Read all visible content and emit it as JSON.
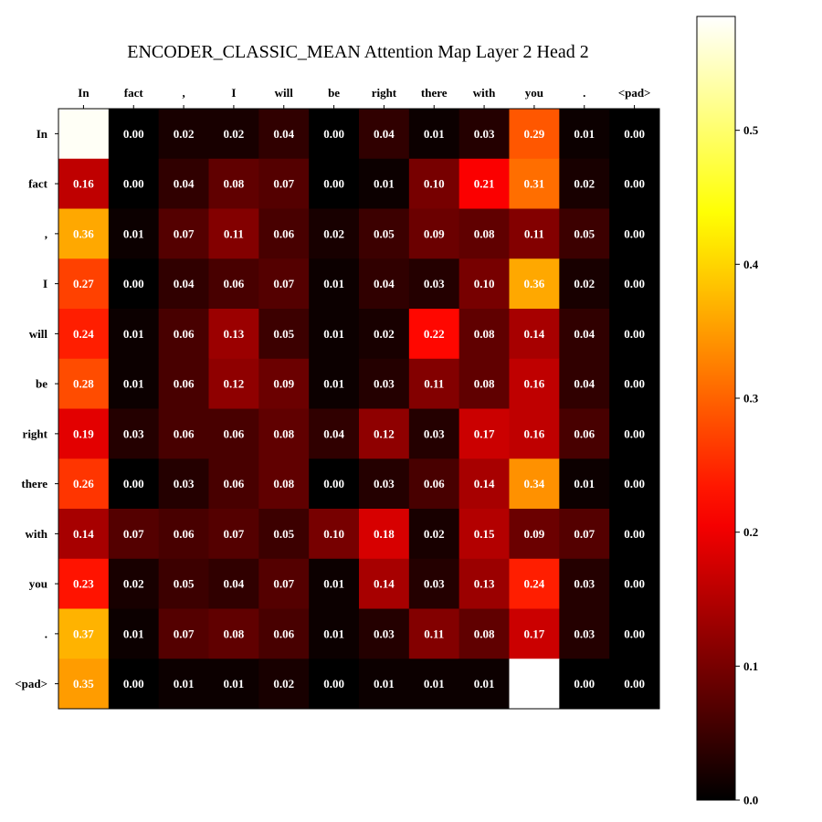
{
  "chart_data": {
    "type": "heatmap",
    "title": "ENCODER_CLASSIC_MEAN Attention Map Layer 2 Head 2",
    "colormap": "hot",
    "vmin": 0.0,
    "vmax": 0.585,
    "x_tokens": [
      "In",
      "fact",
      ",",
      "I",
      "will",
      "be",
      "right",
      "there",
      "with",
      "you",
      ".",
      "<pad>"
    ],
    "y_tokens": [
      "In",
      "fact",
      ",",
      "I",
      "will",
      "be",
      "right",
      "there",
      "with",
      "you",
      ".",
      "<pad>"
    ],
    "values": [
      [
        0.58,
        0.0,
        0.02,
        0.02,
        0.04,
        0.0,
        0.04,
        0.01,
        0.03,
        0.29,
        0.01,
        0.0
      ],
      [
        0.16,
        0.0,
        0.04,
        0.08,
        0.07,
        0.0,
        0.01,
        0.1,
        0.21,
        0.31,
        0.02,
        0.0
      ],
      [
        0.36,
        0.01,
        0.07,
        0.11,
        0.06,
        0.02,
        0.05,
        0.09,
        0.08,
        0.11,
        0.05,
        0.0
      ],
      [
        0.27,
        0.0,
        0.04,
        0.06,
        0.07,
        0.01,
        0.04,
        0.03,
        0.1,
        0.36,
        0.02,
        0.0
      ],
      [
        0.24,
        0.01,
        0.06,
        0.13,
        0.05,
        0.01,
        0.02,
        0.22,
        0.08,
        0.14,
        0.04,
        0.0
      ],
      [
        0.28,
        0.01,
        0.06,
        0.12,
        0.09,
        0.01,
        0.03,
        0.11,
        0.08,
        0.16,
        0.04,
        0.0
      ],
      [
        0.19,
        0.03,
        0.06,
        0.06,
        0.08,
        0.04,
        0.12,
        0.03,
        0.17,
        0.16,
        0.06,
        0.0
      ],
      [
        0.26,
        0.0,
        0.03,
        0.06,
        0.08,
        0.0,
        0.03,
        0.06,
        0.14,
        0.34,
        0.01,
        0.0
      ],
      [
        0.14,
        0.07,
        0.06,
        0.07,
        0.05,
        0.1,
        0.18,
        0.02,
        0.15,
        0.09,
        0.07,
        0.0
      ],
      [
        0.23,
        0.02,
        0.05,
        0.04,
        0.07,
        0.01,
        0.14,
        0.03,
        0.13,
        0.24,
        0.03,
        0.0
      ],
      [
        0.37,
        0.01,
        0.07,
        0.08,
        0.06,
        0.01,
        0.03,
        0.11,
        0.08,
        0.17,
        0.03,
        0.0
      ],
      [
        0.35,
        0.0,
        0.01,
        0.01,
        0.02,
        0.0,
        0.01,
        0.01,
        0.01,
        0.6,
        0.0,
        0.0
      ]
    ],
    "hidden_labels": [
      [
        0,
        0
      ],
      [
        11,
        9
      ]
    ],
    "colorbar": {
      "ticks": [
        0.0,
        0.1,
        0.2,
        0.3,
        0.4,
        0.5
      ],
      "tick_labels": [
        "0.0",
        "0.1",
        "0.2",
        "0.3",
        "0.4",
        "0.5"
      ]
    },
    "grid": false,
    "legend": "none"
  }
}
